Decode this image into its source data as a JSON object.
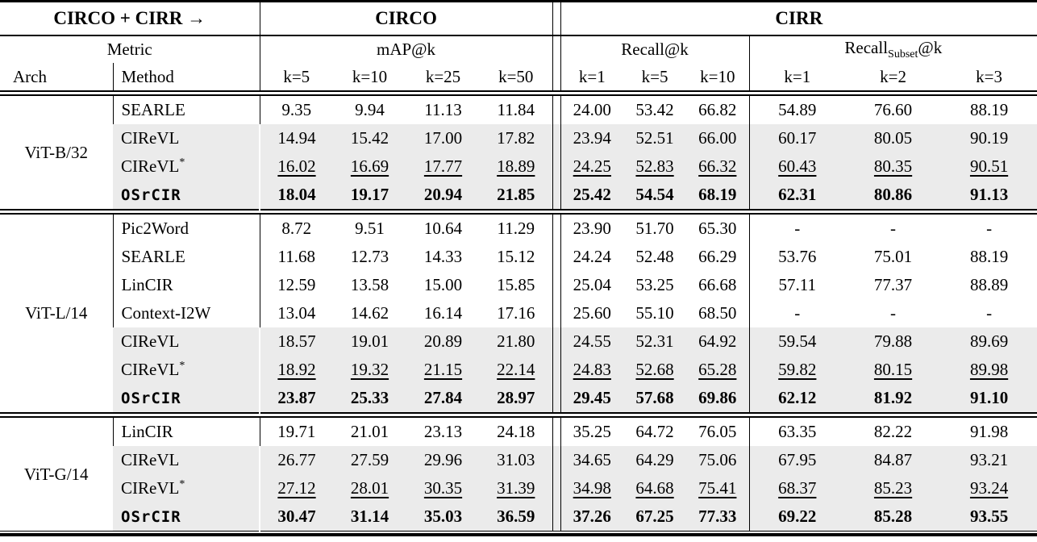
{
  "colors": {
    "row_shade": "#ebebeb",
    "rule": "#000000",
    "text": "#000000"
  },
  "table": {
    "header": {
      "corner_label": "CIRCO + CIRR →",
      "group_circo": "CIRCO",
      "group_cirr": "CIRR",
      "metric_label": "Metric",
      "map_label": "mAP@k",
      "recall_label": "Recall@k",
      "recall_subset": {
        "pre": "Recall",
        "sub": "Subset",
        "post": "@k"
      },
      "arch_label": "Arch",
      "method_label": "Method",
      "k_circo": [
        "k=5",
        "k=10",
        "k=25",
        "k=50"
      ],
      "k_recall": [
        "k=1",
        "k=5",
        "k=10"
      ],
      "k_subset": [
        "k=1",
        "k=2",
        "k=3"
      ]
    },
    "sections": [
      {
        "arch": "ViT-B/32",
        "rows": [
          {
            "method": "SEARLE",
            "kind": "plain",
            "values": [
              "9.35",
              "9.94",
              "11.13",
              "11.84",
              "24.00",
              "53.42",
              "66.82",
              "54.89",
              "76.60",
              "88.19"
            ]
          },
          {
            "method": "CIReVL",
            "kind": "shaded",
            "values": [
              "14.94",
              "15.42",
              "17.00",
              "17.82",
              "23.94",
              "52.51",
              "66.00",
              "60.17",
              "80.05",
              "90.19"
            ]
          },
          {
            "method": "CIReVL",
            "sup": "*",
            "kind": "second",
            "values": [
              "16.02",
              "16.69",
              "17.77",
              "18.89",
              "24.25",
              "52.83",
              "66.32",
              "60.43",
              "80.35",
              "90.51"
            ]
          },
          {
            "method": "OSrCIR",
            "kind": "best",
            "values": [
              "18.04",
              "19.17",
              "20.94",
              "21.85",
              "25.42",
              "54.54",
              "68.19",
              "62.31",
              "80.86",
              "91.13"
            ]
          }
        ]
      },
      {
        "arch": "ViT-L/14",
        "rows": [
          {
            "method": "Pic2Word",
            "kind": "plain",
            "values": [
              "8.72",
              "9.51",
              "10.64",
              "11.29",
              "23.90",
              "51.70",
              "65.30",
              "-",
              "-",
              "-"
            ]
          },
          {
            "method": "SEARLE",
            "kind": "plain",
            "values": [
              "11.68",
              "12.73",
              "14.33",
              "15.12",
              "24.24",
              "52.48",
              "66.29",
              "53.76",
              "75.01",
              "88.19"
            ]
          },
          {
            "method": "LinCIR",
            "kind": "plain",
            "values": [
              "12.59",
              "13.58",
              "15.00",
              "15.85",
              "25.04",
              "53.25",
              "66.68",
              "57.11",
              "77.37",
              "88.89"
            ]
          },
          {
            "method": "Context-I2W",
            "kind": "plain",
            "values": [
              "13.04",
              "14.62",
              "16.14",
              "17.16",
              "25.60",
              "55.10",
              "68.50",
              "-",
              "-",
              "-"
            ]
          },
          {
            "method": "CIReVL",
            "kind": "shaded",
            "values": [
              "18.57",
              "19.01",
              "20.89",
              "21.80",
              "24.55",
              "52.31",
              "64.92",
              "59.54",
              "79.88",
              "89.69"
            ]
          },
          {
            "method": "CIReVL",
            "sup": "*",
            "kind": "second",
            "values": [
              "18.92",
              "19.32",
              "21.15",
              "22.14",
              "24.83",
              "52.68",
              "65.28",
              "59.82",
              "80.15",
              "89.98"
            ]
          },
          {
            "method": "OSrCIR",
            "kind": "best",
            "values": [
              "23.87",
              "25.33",
              "27.84",
              "28.97",
              "29.45",
              "57.68",
              "69.86",
              "62.12",
              "81.92",
              "91.10"
            ]
          }
        ]
      },
      {
        "arch": "ViT-G/14",
        "rows": [
          {
            "method": "LinCIR",
            "kind": "plain",
            "values": [
              "19.71",
              "21.01",
              "23.13",
              "24.18",
              "35.25",
              "64.72",
              "76.05",
              "63.35",
              "82.22",
              "91.98"
            ]
          },
          {
            "method": "CIReVL",
            "kind": "shaded",
            "values": [
              "26.77",
              "27.59",
              "29.96",
              "31.03",
              "34.65",
              "64.29",
              "75.06",
              "67.95",
              "84.87",
              "93.21"
            ]
          },
          {
            "method": "CIReVL",
            "sup": "*",
            "kind": "second",
            "values": [
              "27.12",
              "28.01",
              "30.35",
              "31.39",
              "34.98",
              "64.68",
              "75.41",
              "68.37",
              "85.23",
              "93.24"
            ]
          },
          {
            "method": "OSrCIR",
            "kind": "best",
            "values": [
              "30.47",
              "31.14",
              "35.03",
              "36.59",
              "37.26",
              "67.25",
              "77.33",
              "69.22",
              "85.28",
              "93.55"
            ]
          }
        ]
      }
    ]
  }
}
